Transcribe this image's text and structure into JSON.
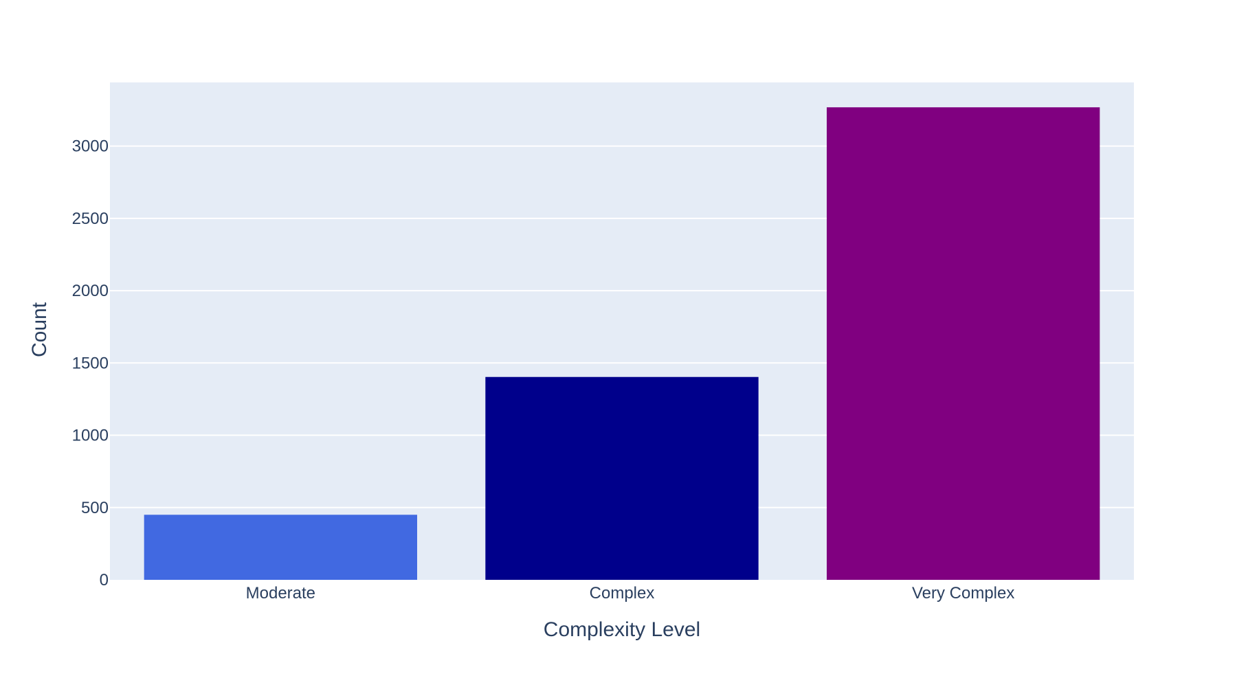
{
  "chart_data": {
    "type": "bar",
    "title": "",
    "categories": [
      "Moderate",
      "Complex",
      "Very Complex"
    ],
    "values": [
      450,
      1403,
      3268
    ],
    "bar_colors": [
      "#4169e1",
      "#00008b",
      "#800080"
    ],
    "xlabel": "Complexity Level",
    "ylabel": "Count",
    "ylim": [
      0,
      3440
    ],
    "yticks": [
      0,
      500,
      1000,
      1500,
      2000,
      2500,
      3000
    ],
    "ytick_labels": [
      "0",
      "500",
      "1000",
      "1500",
      "2000",
      "2500",
      "3000"
    ],
    "grid": true,
    "plot_background": "#e5ecf6",
    "gridline_color": "#ffffff",
    "text_color": "#2a3f5f"
  }
}
